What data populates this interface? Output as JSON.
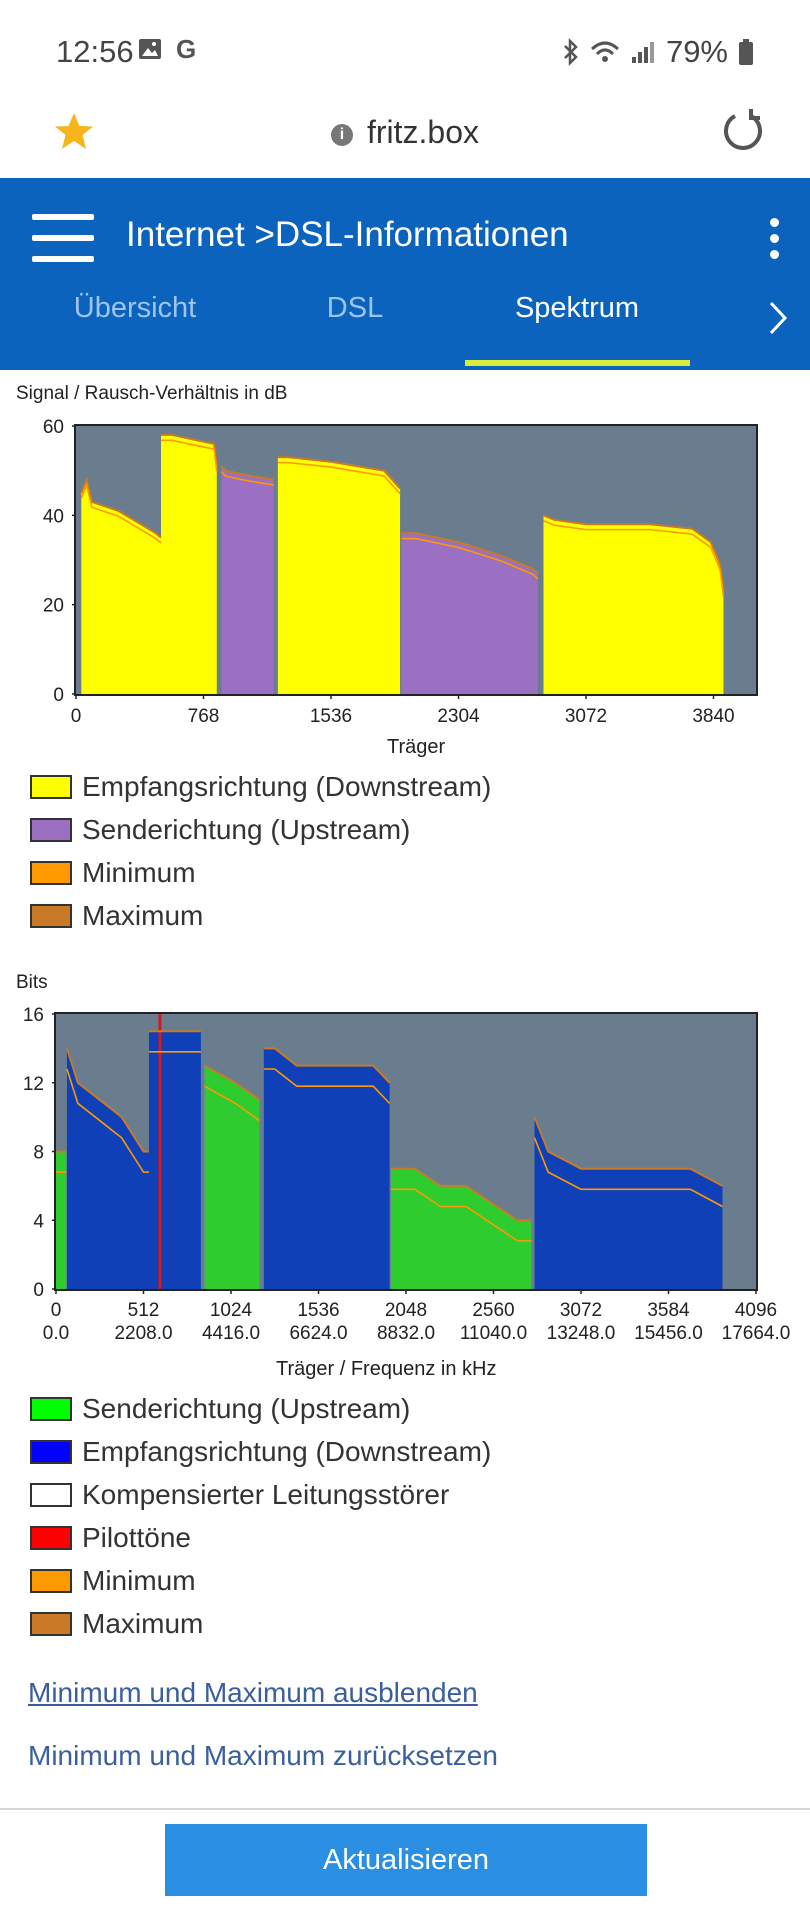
{
  "status": {
    "time": "12:56",
    "battery": "79%"
  },
  "browser": {
    "url": "fritz.box"
  },
  "header": {
    "crumb_root": "Internet",
    "crumb_sep": ">",
    "crumb_page": "DSL-Informationen",
    "tabs": [
      "Übersicht",
      "DSL",
      "Spektrum"
    ],
    "active_tab": "Spektrum"
  },
  "chart1": {
    "title": "Signal / Rausch-Verhältnis in dB",
    "xlabel": "Träger",
    "yticks": [
      "60",
      "40",
      "20",
      "0"
    ],
    "xticks": [
      "0",
      "768",
      "1536",
      "2304",
      "3072",
      "3840"
    ],
    "legend": [
      {
        "label": "Empfangsrichtung (Downstream)",
        "color": "#ffff00"
      },
      {
        "label": "Senderichtung (Upstream)",
        "color": "#9b6fc1"
      },
      {
        "label": "Minimum",
        "color": "#ff9900"
      },
      {
        "label": "Maximum",
        "color": "#c87a27"
      }
    ]
  },
  "chart2": {
    "title": "Bits",
    "xlabel": "Träger / Frequenz in kHz",
    "yticks": [
      "16",
      "12",
      "8",
      "4",
      "0"
    ],
    "xticks_carrier": [
      "0",
      "512",
      "1024",
      "1536",
      "2048",
      "2560",
      "3072",
      "3584",
      "4096"
    ],
    "xticks_freq": [
      "0.0",
      "2208.0",
      "4416.0",
      "6624.0",
      "8832.0",
      "11040.0",
      "13248.0",
      "15456.0",
      "17664.0"
    ],
    "legend": [
      {
        "label": "Senderichtung (Upstream)",
        "color": "#00ff00"
      },
      {
        "label": "Empfangsrichtung (Downstream)",
        "color": "#0000ff"
      },
      {
        "label": "Kompensierter Leitungsstörer",
        "color": "#ffffff"
      },
      {
        "label": "Pilottöne",
        "color": "#ff0000"
      },
      {
        "label": "Minimum",
        "color": "#ff9900"
      },
      {
        "label": "Maximum",
        "color": "#c87a27"
      }
    ]
  },
  "chart_data": [
    {
      "type": "area",
      "title": "Signal / Rausch-Verhältnis in dB",
      "xlabel": "Träger",
      "ylabel": "",
      "xlim": [
        0,
        4096
      ],
      "ylim": [
        0,
        60
      ],
      "grid": false,
      "series": [
        {
          "name": "Empfangsrichtung (Downstream)",
          "segments": [
            {
              "x": [
                32,
                64,
                96,
                256,
                480,
                512
              ],
              "y": [
                45,
                48,
                43,
                41,
                36,
                35
              ]
            },
            {
              "x": [
                512,
                576,
                832,
                848
              ],
              "y": [
                58,
                58,
                56,
                51
              ]
            },
            {
              "x": [
                1216,
                1280,
                1536,
                1856,
                1952
              ],
              "y": [
                53,
                53,
                52,
                50,
                46
              ]
            },
            {
              "x": [
                2816,
                2880,
                3072,
                3456,
                3712,
                3824,
                3880,
                3900
              ],
              "y": [
                40,
                39,
                38,
                38,
                37,
                34,
                29,
                23
              ]
            }
          ]
        },
        {
          "name": "Senderichtung (Upstream)",
          "segments": [
            {
              "x": [
                876,
                900,
                1024,
                1190
              ],
              "y": [
                51,
                50,
                49,
                48
              ]
            },
            {
              "x": [
                1960,
                2048,
                2304,
                2560,
                2752,
                2782
              ],
              "y": [
                36,
                36,
                34,
                31,
                28,
                27
              ]
            }
          ]
        }
      ]
    },
    {
      "type": "area",
      "title": "Bits",
      "xlabel": "Träger / Frequenz in kHz",
      "ylabel": "",
      "xlim": [
        0,
        4096
      ],
      "ylim": [
        0,
        16
      ],
      "grid": false,
      "series": [
        {
          "name": "Senderichtung (Upstream)",
          "segments": [
            {
              "x": [
                0,
                60
              ],
              "y": [
                8,
                8
              ]
            },
            {
              "x": [
                870,
                1050,
                1190
              ],
              "y": [
                13,
                12,
                11
              ]
            },
            {
              "x": [
                1960,
                2100,
                2250,
                2400,
                2550,
                2700,
                2782
              ],
              "y": [
                7,
                7,
                6,
                6,
                5,
                4,
                4
              ]
            }
          ]
        },
        {
          "name": "Empfangsrichtung (Downstream)",
          "segments": [
            {
              "x": [
                64,
                96,
                128,
                256,
                384,
                512,
                544
              ],
              "y": [
                14,
                13,
                12,
                11,
                10,
                8,
                8
              ]
            },
            {
              "x": [
                544,
                576,
                832,
                848
              ],
              "y": [
                15,
                15,
                15,
                15
              ]
            },
            {
              "x": [
                1216,
                1280,
                1408,
                1536,
                1856,
                1952
              ],
              "y": [
                14,
                14,
                13,
                13,
                13,
                12
              ]
            },
            {
              "x": [
                2800,
                2880,
                3072,
                3456,
                3712,
                3900
              ],
              "y": [
                10,
                8,
                7,
                7,
                7,
                6
              ]
            }
          ]
        },
        {
          "name": "Pilottöne",
          "segments": [
            {
              "x": [
                608
              ],
              "y": [
                16
              ]
            }
          ]
        }
      ]
    }
  ],
  "links": {
    "hide": "Minimum und Maximum ausblenden",
    "reset": "Minimum und Maximum zurücksetzen"
  },
  "update_button": "Aktualisieren"
}
